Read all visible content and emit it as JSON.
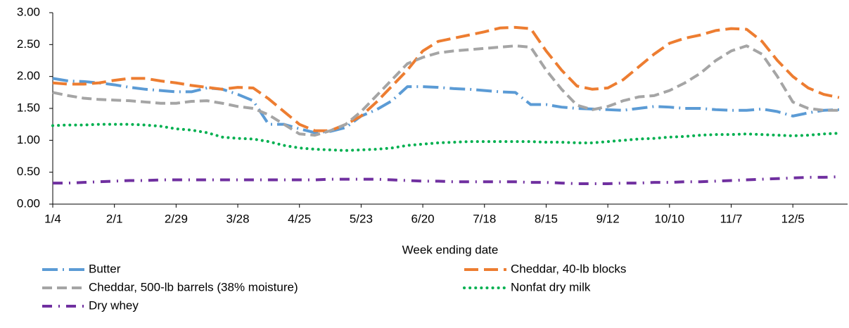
{
  "chart_data": {
    "type": "line",
    "x_label": "Week ending date",
    "categories": [
      "1/4",
      null,
      null,
      null,
      "2/1",
      null,
      null,
      null,
      "2/29",
      null,
      null,
      null,
      "3/28",
      null,
      null,
      null,
      "4/25",
      null,
      null,
      null,
      "5/23",
      null,
      null,
      null,
      "6/20",
      null,
      null,
      null,
      "7/18",
      null,
      null,
      null,
      "8/15",
      null,
      null,
      null,
      "9/12",
      null,
      null,
      null,
      "10/10",
      null,
      null,
      null,
      "11/7",
      null,
      null,
      null,
      "12/5",
      null,
      null,
      null
    ],
    "series": [
      {
        "name": "Butter",
        "color": "#5b9bd5",
        "values": [
          1.97,
          1.93,
          1.92,
          1.9,
          1.87,
          1.83,
          1.8,
          1.78,
          1.76,
          1.76,
          1.82,
          1.8,
          1.72,
          1.62,
          1.25,
          1.25,
          1.18,
          1.12,
          1.14,
          1.2,
          1.38,
          1.48,
          1.62,
          1.84,
          1.84,
          1.83,
          1.81,
          1.8,
          1.78,
          1.76,
          1.75,
          1.56,
          1.56,
          1.52,
          1.5,
          1.49,
          1.48,
          1.47,
          1.5,
          1.53,
          1.52,
          1.5,
          1.5,
          1.48,
          1.47,
          1.47,
          1.49,
          1.45,
          1.38,
          1.43,
          1.47,
          1.48
        ]
      },
      {
        "name": "Cheddar, 40-lb blocks",
        "color": "#ed7d31",
        "values": [
          1.9,
          1.88,
          1.88,
          1.9,
          1.94,
          1.97,
          1.97,
          1.93,
          1.9,
          1.86,
          1.83,
          1.8,
          1.83,
          1.82,
          1.65,
          1.45,
          1.25,
          1.15,
          1.15,
          1.25,
          1.38,
          1.6,
          1.85,
          2.1,
          2.4,
          2.55,
          2.6,
          2.65,
          2.7,
          2.76,
          2.77,
          2.75,
          2.4,
          2.1,
          1.85,
          1.8,
          1.82,
          1.95,
          2.15,
          2.35,
          2.52,
          2.6,
          2.65,
          2.72,
          2.75,
          2.74,
          2.55,
          2.25,
          2.0,
          1.82,
          1.72,
          1.67
        ]
      },
      {
        "name": "Cheddar, 500-lb barrels (38% moisture)",
        "color": "#a5a5a5",
        "values": [
          1.75,
          1.7,
          1.66,
          1.64,
          1.63,
          1.62,
          1.6,
          1.58,
          1.58,
          1.61,
          1.62,
          1.58,
          1.53,
          1.5,
          1.4,
          1.25,
          1.1,
          1.08,
          1.15,
          1.25,
          1.45,
          1.7,
          1.95,
          2.2,
          2.3,
          2.37,
          2.4,
          2.42,
          2.44,
          2.46,
          2.48,
          2.46,
          2.1,
          1.8,
          1.55,
          1.48,
          1.53,
          1.62,
          1.68,
          1.7,
          1.78,
          1.9,
          2.05,
          2.25,
          2.4,
          2.48,
          2.35,
          2.0,
          1.6,
          1.5,
          1.47,
          1.47
        ]
      },
      {
        "name": "Nonfat dry milk",
        "color": "#00b050",
        "values": [
          1.23,
          1.24,
          1.24,
          1.25,
          1.25,
          1.25,
          1.24,
          1.22,
          1.18,
          1.16,
          1.12,
          1.05,
          1.03,
          1.02,
          0.98,
          0.92,
          0.88,
          0.86,
          0.85,
          0.84,
          0.85,
          0.86,
          0.88,
          0.92,
          0.94,
          0.96,
          0.97,
          0.98,
          0.98,
          0.98,
          0.98,
          0.98,
          0.97,
          0.97,
          0.96,
          0.96,
          0.98,
          1.0,
          1.02,
          1.03,
          1.05,
          1.06,
          1.08,
          1.09,
          1.09,
          1.1,
          1.09,
          1.08,
          1.07,
          1.08,
          1.1,
          1.11
        ]
      },
      {
        "name": "Dry whey",
        "color": "#7030a0",
        "values": [
          0.33,
          0.33,
          0.34,
          0.35,
          0.36,
          0.37,
          0.37,
          0.38,
          0.38,
          0.38,
          0.38,
          0.38,
          0.38,
          0.38,
          0.38,
          0.38,
          0.38,
          0.38,
          0.39,
          0.39,
          0.39,
          0.39,
          0.38,
          0.37,
          0.36,
          0.36,
          0.35,
          0.35,
          0.35,
          0.35,
          0.35,
          0.34,
          0.34,
          0.33,
          0.32,
          0.32,
          0.32,
          0.33,
          0.33,
          0.34,
          0.34,
          0.35,
          0.35,
          0.36,
          0.37,
          0.38,
          0.39,
          0.4,
          0.41,
          0.42,
          0.42,
          0.43
        ]
      }
    ],
    "ylim": [
      0,
      3
    ],
    "yticks": [
      {
        "value": 0,
        "label": "0.00"
      },
      {
        "value": 0.5,
        "label": "0.50"
      },
      {
        "value": 1,
        "label": "1.00"
      },
      {
        "value": 1.5,
        "label": "1.50"
      },
      {
        "value": 2,
        "label": "2.00"
      },
      {
        "value": 2.5,
        "label": "2.50"
      },
      {
        "value": 3,
        "label": "3.00"
      }
    ],
    "grid": false,
    "legend": "bottom"
  }
}
